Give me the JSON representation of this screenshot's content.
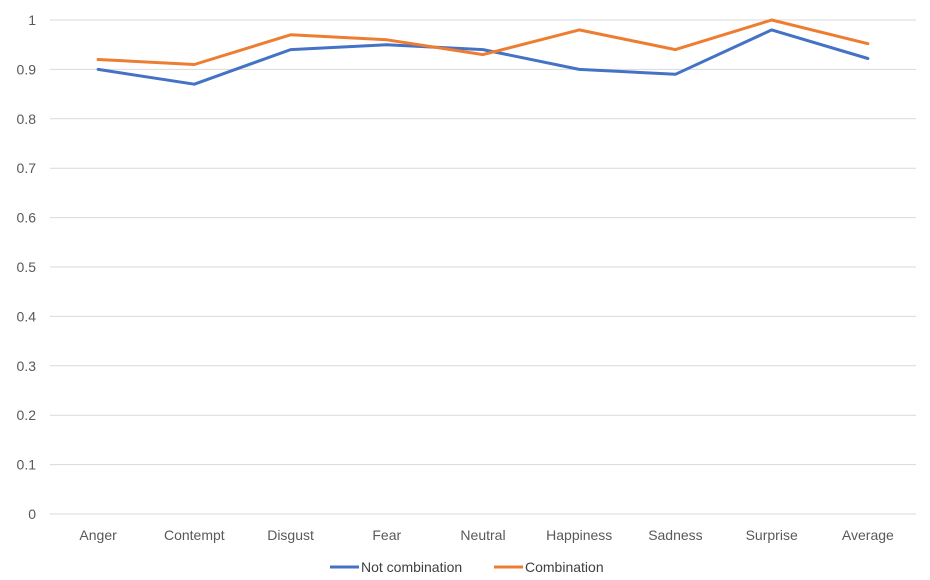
{
  "chart_data": {
    "type": "line",
    "categories": [
      "Anger",
      "Contempt",
      "Disgust",
      "Fear",
      "Neutral",
      "Happiness",
      "Sadness",
      "Surprise",
      "Average"
    ],
    "series": [
      {
        "name": "Not combination",
        "color": "#4472c4",
        "values": [
          0.9,
          0.87,
          0.94,
          0.95,
          0.94,
          0.9,
          0.89,
          0.98,
          0.922
        ]
      },
      {
        "name": "Combination",
        "color": "#ed7d31",
        "values": [
          0.92,
          0.91,
          0.97,
          0.96,
          0.93,
          0.98,
          0.94,
          1.0,
          0.952
        ]
      }
    ],
    "y_ticks": [
      "0",
      "0.1",
      "0.2",
      "0.3",
      "0.4",
      "0.5",
      "0.6",
      "0.7",
      "0.8",
      "0.9",
      "1"
    ],
    "ylim": [
      0,
      1
    ],
    "grid": true,
    "legend_position": "bottom"
  }
}
